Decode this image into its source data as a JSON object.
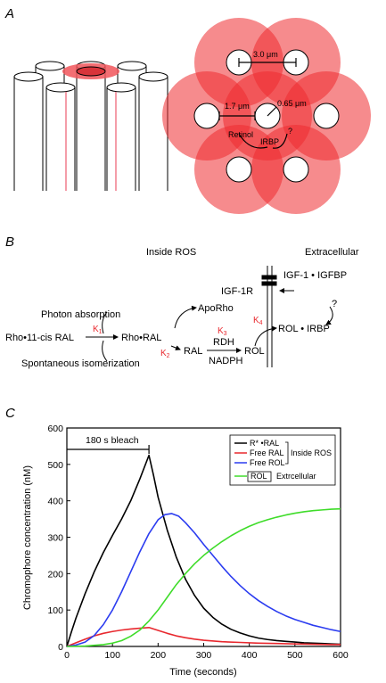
{
  "panel_a": {
    "letter": "A",
    "dim_rod_spacing": "3.0 μm",
    "dim_rod_to_rod": "1.7 μm",
    "dim_rod_radius": "0.65 μm",
    "retinol_label": "Retinol",
    "irbp_label": "IRBP",
    "question_mark": "?",
    "spot_color": "#ef2b2f"
  },
  "panel_b": {
    "letter": "B",
    "inside_ros": "Inside ROS",
    "extracellular": "Extracellular",
    "rho_11cis": "Rho•11-cis RAL",
    "photon_absorption": "Photon absorption",
    "spontaneous_isomerization": "Spontaneous isomerization",
    "k1": "K",
    "k1_sub": "1",
    "rho_ral": "Rho•RAL",
    "apo_rho": "ApoRho",
    "k2": "K",
    "k2_sub": "2",
    "ral": "RAL",
    "k3": "K",
    "k3_sub": "3",
    "rdh": "RDH",
    "nadph": "NADPH",
    "rol": "ROL",
    "k4": "K",
    "k4_sub": "4",
    "igf1r": "IGF-1R",
    "igf1_igfbp": "IGF-1 • IGFBP",
    "rol_irbp": "ROL • IRBP",
    "question_mark": "?",
    "rate_color": "#e8282e"
  },
  "panel_c": {
    "letter": "C",
    "bleach_label": "180 s bleach"
  },
  "chart_data": {
    "type": "line",
    "xlabel": "Time (seconds)",
    "ylabel": "Chromophore concentration (nM)",
    "xlim": [
      0,
      600
    ],
    "ylim": [
      0,
      600
    ],
    "xticks": [
      0,
      100,
      200,
      300,
      400,
      500,
      600
    ],
    "yticks": [
      0,
      100,
      200,
      300,
      400,
      500,
      600
    ],
    "bleach_interval": [
      0,
      180
    ],
    "legend_group_inside": "Inside ROS",
    "legend_group_extra": "Extrcellular",
    "series": [
      {
        "name": "R* •RAL",
        "color": "#000000",
        "x": [
          0,
          10,
          20,
          40,
          60,
          80,
          100,
          120,
          140,
          160,
          180,
          190,
          200,
          220,
          240,
          260,
          280,
          300,
          320,
          340,
          360,
          380,
          400,
          420,
          440,
          460,
          480,
          500,
          520,
          540,
          560,
          580,
          600
        ],
        "y": [
          0,
          40,
          78,
          145,
          205,
          258,
          305,
          350,
          400,
          460,
          525,
          470,
          410,
          320,
          245,
          185,
          140,
          105,
          80,
          61,
          47,
          37,
          29,
          23,
          19,
          16,
          14,
          12,
          10,
          9,
          8,
          7,
          6
        ]
      },
      {
        "name": "Free RAL",
        "color": "#e8282e",
        "x": [
          0,
          20,
          40,
          60,
          80,
          100,
          120,
          140,
          160,
          180,
          200,
          220,
          240,
          260,
          280,
          300,
          340,
          380,
          420,
          460,
          500,
          540,
          580,
          600
        ],
        "y": [
          0,
          10,
          20,
          29,
          36,
          41,
          45,
          48,
          50,
          52,
          44,
          36,
          29,
          24,
          20,
          17,
          13,
          11,
          9,
          8,
          7,
          6,
          5,
          5
        ]
      },
      {
        "name": "Free ROL",
        "color": "#2b3cf0",
        "x": [
          0,
          20,
          40,
          60,
          80,
          100,
          120,
          140,
          160,
          180,
          200,
          215,
          230,
          245,
          260,
          280,
          300,
          320,
          340,
          360,
          380,
          400,
          420,
          440,
          460,
          480,
          500,
          520,
          540,
          560,
          580,
          600
        ],
        "y": [
          0,
          4,
          12,
          30,
          60,
          100,
          150,
          205,
          260,
          310,
          348,
          362,
          365,
          358,
          340,
          312,
          280,
          250,
          220,
          192,
          167,
          145,
          126,
          110,
          96,
          84,
          74,
          66,
          58,
          52,
          46,
          41
        ]
      },
      {
        "name": "ROL",
        "color": "#3fdc2a",
        "x": [
          0,
          40,
          80,
          100,
          120,
          140,
          160,
          180,
          200,
          220,
          240,
          260,
          280,
          300,
          320,
          340,
          360,
          380,
          400,
          420,
          440,
          460,
          480,
          500,
          520,
          540,
          560,
          580,
          600
        ],
        "y": [
          0,
          1,
          5,
          9,
          16,
          28,
          45,
          70,
          100,
          135,
          170,
          200,
          227,
          250,
          270,
          288,
          304,
          318,
          330,
          340,
          348,
          355,
          361,
          366,
          370,
          373,
          375,
          377,
          378
        ]
      }
    ]
  }
}
